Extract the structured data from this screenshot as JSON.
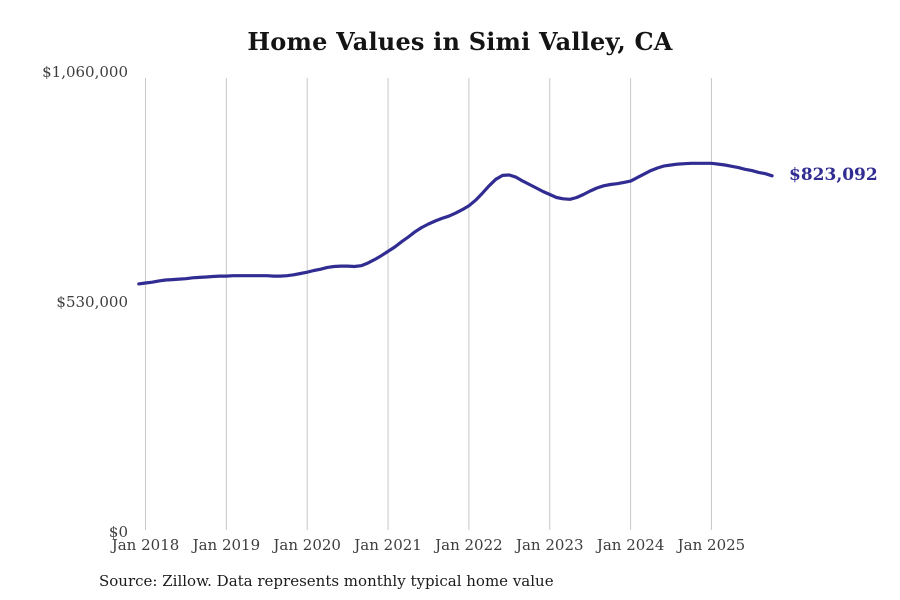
{
  "title": "Home Values in Simi Valley, CA",
  "source_note": "Source: Zillow. Data represents monthly typical home value",
  "colors": {
    "line": "#312c92",
    "grid": "#c8c8c8",
    "tick_label": "#3d3d3d",
    "title": "#141414",
    "source_text": "#1c1c1c",
    "background": "#ffffff"
  },
  "chart_data": {
    "type": "line",
    "title": "Home Values in Simi Valley, CA",
    "xlabel": "",
    "ylabel": "",
    "ylim": [
      0,
      1060000
    ],
    "y_tick_values": [
      0,
      530000,
      1060000
    ],
    "y_tick_labels": [
      "$0",
      "$530,000",
      "$1,060,000"
    ],
    "x_tick_labels": [
      "Jan 2018",
      "Jan 2019",
      "Jan 2020",
      "Jan 2021",
      "Jan 2022",
      "Jan 2023",
      "Jan 2024",
      "Jan 2025"
    ],
    "grid": "vertical-only",
    "legend": "none",
    "latest_value": 823092,
    "latest_value_label": "$823,092",
    "series": [
      {
        "name": "Monthly typical home value",
        "dates": [
          "2017-12",
          "2018-01",
          "2018-02",
          "2018-03",
          "2018-04",
          "2018-05",
          "2018-06",
          "2018-07",
          "2018-08",
          "2018-09",
          "2018-10",
          "2018-11",
          "2018-12",
          "2019-01",
          "2019-02",
          "2019-03",
          "2019-04",
          "2019-05",
          "2019-06",
          "2019-07",
          "2019-08",
          "2019-09",
          "2019-10",
          "2019-11",
          "2019-12",
          "2020-01",
          "2020-02",
          "2020-03",
          "2020-04",
          "2020-05",
          "2020-06",
          "2020-07",
          "2020-08",
          "2020-09",
          "2020-10",
          "2020-11",
          "2020-12",
          "2021-01",
          "2021-02",
          "2021-03",
          "2021-04",
          "2021-05",
          "2021-06",
          "2021-07",
          "2021-08",
          "2021-09",
          "2021-10",
          "2021-11",
          "2021-12",
          "2022-01",
          "2022-02",
          "2022-03",
          "2022-04",
          "2022-05",
          "2022-06",
          "2022-07",
          "2022-08",
          "2022-09",
          "2022-10",
          "2022-11",
          "2022-12",
          "2023-01",
          "2023-02",
          "2023-03",
          "2023-04",
          "2023-05",
          "2023-06",
          "2023-07",
          "2023-08",
          "2023-09",
          "2023-10",
          "2023-11",
          "2023-12",
          "2024-01",
          "2024-02",
          "2024-03",
          "2024-04",
          "2024-05",
          "2024-06",
          "2024-07",
          "2024-08",
          "2024-09",
          "2024-10",
          "2024-11",
          "2024-12",
          "2025-01",
          "2025-02",
          "2025-03",
          "2025-04",
          "2025-05",
          "2025-06",
          "2025-07",
          "2025-08",
          "2025-09",
          "2025-10"
        ],
        "values": [
          574000,
          576000,
          578000,
          581000,
          583000,
          584000,
          585000,
          586000,
          588000,
          589000,
          590000,
          591000,
          592000,
          592000,
          593000,
          593000,
          593000,
          593000,
          593000,
          593000,
          592000,
          592000,
          593000,
          595000,
          598000,
          601000,
          605000,
          608000,
          612000,
          614000,
          615000,
          615000,
          614000,
          616000,
          622000,
          630000,
          639000,
          649000,
          659000,
          671000,
          682000,
          694000,
          704000,
          712000,
          719000,
          725000,
          730000,
          737000,
          745000,
          754000,
          767000,
          783000,
          800000,
          815000,
          824000,
          825000,
          820000,
          811000,
          803000,
          795000,
          787000,
          780000,
          773000,
          770000,
          769000,
          773000,
          780000,
          788000,
          795000,
          800000,
          803000,
          805000,
          808000,
          811000,
          819000,
          827000,
          835000,
          841000,
          846000,
          848000,
          850000,
          851000,
          852000,
          852000,
          852000,
          852000,
          850000,
          848000,
          845000,
          842000,
          838000,
          835000,
          831000,
          828000,
          823092
        ]
      }
    ]
  }
}
